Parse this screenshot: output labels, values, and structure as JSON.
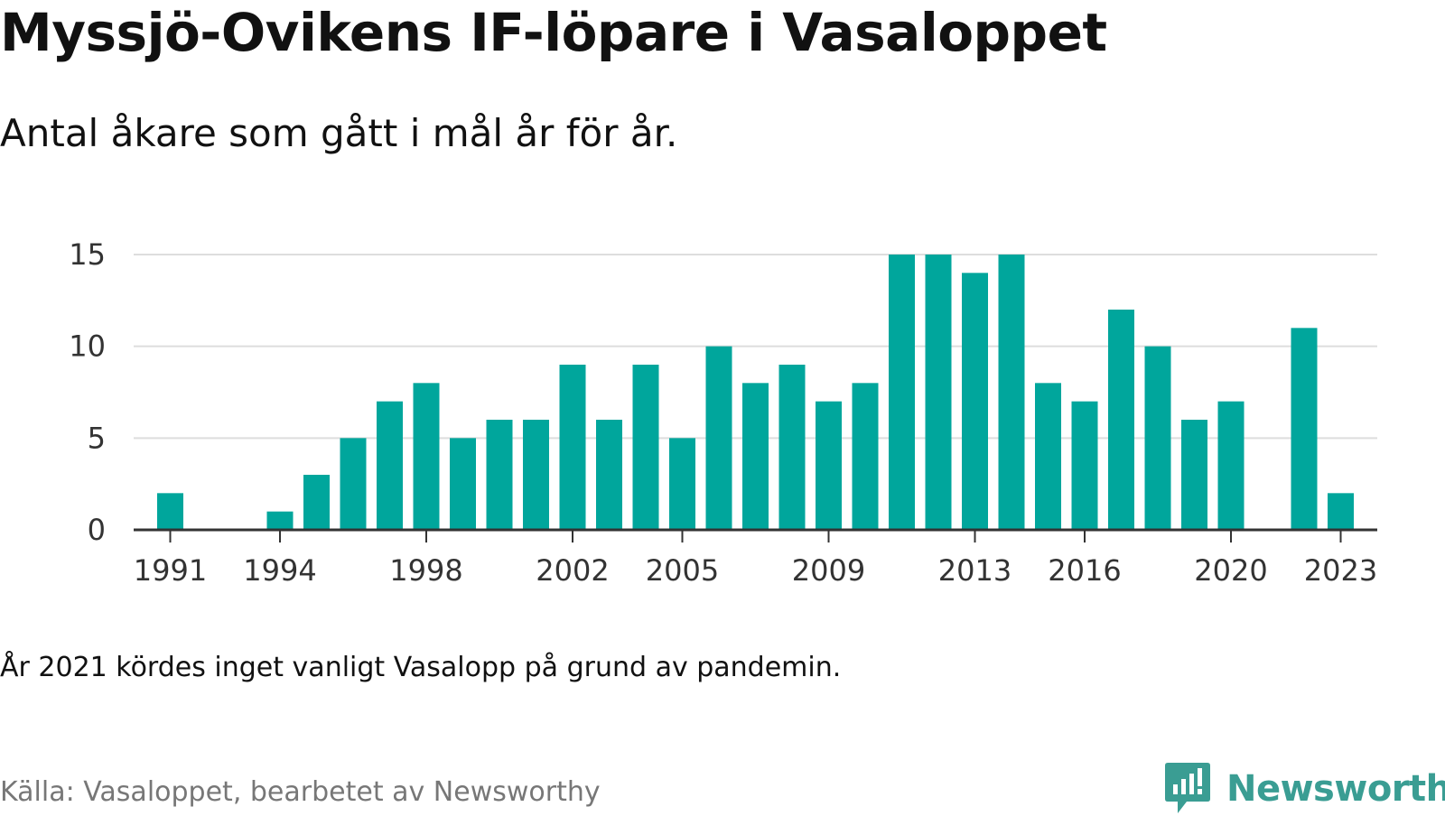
{
  "title": "Myssjö-Ovikens IF-löpare i Vasaloppet",
  "subtitle": "Antal åkare som gått i mål år för år.",
  "note": "År 2021 kördes inget vanligt Vasalopp på grund av pandemin.",
  "source": "Källa: Vasaloppet, bearbetet av Newsworthy",
  "brand": {
    "name": "Newsworthy",
    "color": "#3a9d93",
    "icon": "chart-speech-bubble-icon"
  },
  "colors": {
    "bar": "#00a69c",
    "grid": "#dddddd",
    "axis": "#333333"
  },
  "chart_data": {
    "type": "bar",
    "title": "Myssjö-Ovikens IF-löpare i Vasaloppet",
    "subtitle": "Antal åkare som gått i mål år för år.",
    "xlabel": "",
    "ylabel": "",
    "x": [
      1991,
      1992,
      1993,
      1994,
      1995,
      1996,
      1997,
      1998,
      1999,
      2000,
      2001,
      2002,
      2003,
      2004,
      2005,
      2006,
      2007,
      2008,
      2009,
      2010,
      2011,
      2012,
      2013,
      2014,
      2015,
      2016,
      2017,
      2018,
      2019,
      2020,
      2021,
      2022,
      2023
    ],
    "values": [
      2,
      0,
      0,
      1,
      3,
      5,
      7,
      8,
      5,
      6,
      6,
      9,
      6,
      9,
      5,
      10,
      8,
      9,
      7,
      8,
      15,
      15,
      14,
      15,
      8,
      7,
      12,
      10,
      6,
      7,
      null,
      11,
      2
    ],
    "xtick_labels": [
      "1991",
      "1994",
      "1998",
      "2002",
      "2005",
      "2009",
      "2013",
      "2016",
      "2020",
      "2023"
    ],
    "xlim": [
      1990,
      2024
    ],
    "ylim": [
      0,
      15
    ],
    "yticks": [
      0,
      5,
      10,
      15
    ],
    "ytick_labels": [
      "0",
      "5",
      "10",
      "15"
    ],
    "grid": true,
    "legend": "none"
  }
}
